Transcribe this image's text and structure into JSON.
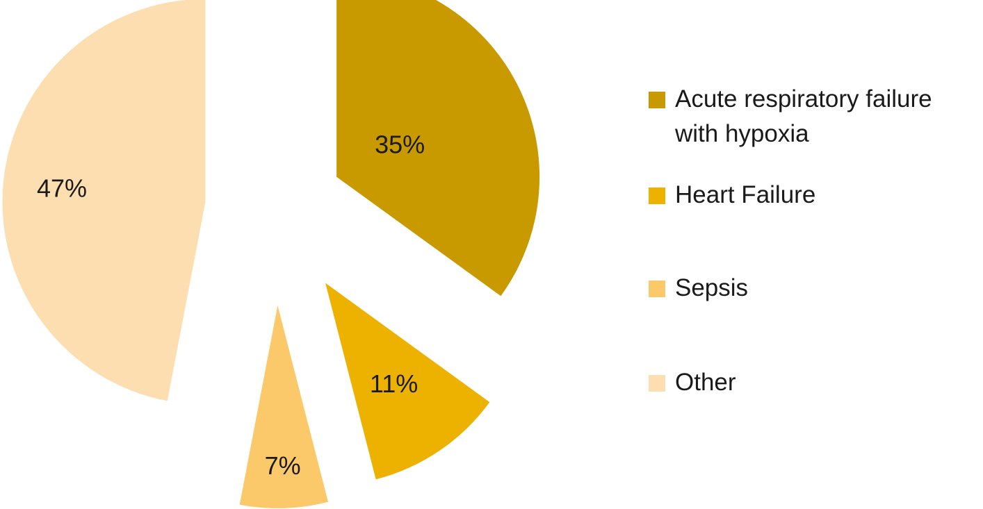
{
  "chart_data": {
    "type": "pie",
    "unit": "%",
    "title": "",
    "legend_position": "right",
    "start_angle": "12 o'clock, clockwise",
    "exploded": true,
    "slices": [
      {
        "label": "Acute respiratory failure with hypoxia",
        "value": 35,
        "value_label": "35%",
        "color": "#C89A00"
      },
      {
        "label": "Heart Failure",
        "value": 11,
        "value_label": "11%",
        "color": "#EDB100"
      },
      {
        "label": "Sepsis",
        "value": 7,
        "value_label": "7%",
        "color": "#FCC96A"
      },
      {
        "label": "Other",
        "value": 47,
        "value_label": "47%",
        "color": "#FDDEB0"
      }
    ]
  }
}
